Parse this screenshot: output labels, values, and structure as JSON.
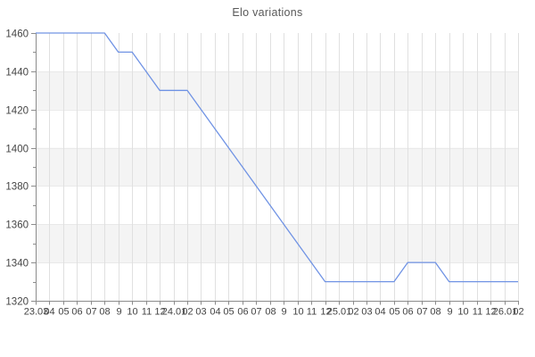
{
  "chart_data": {
    "type": "line",
    "title": "Elo variations",
    "categories": [
      "23.03",
      "04",
      "05",
      "06",
      "07",
      "08",
      "9",
      "10",
      "11",
      "12",
      "24.01",
      "02",
      "03",
      "04",
      "05",
      "06",
      "07",
      "08",
      "9",
      "10",
      "11",
      "12",
      "25.01",
      "02",
      "03",
      "04",
      "05",
      "06",
      "07",
      "08",
      "9",
      "10",
      "11",
      "12",
      "26.01",
      "02"
    ],
    "series": [
      {
        "name": "Elo",
        "values": [
          1460,
          1460,
          1460,
          1460,
          1460,
          1460,
          1450,
          1450,
          1440,
          1430,
          1430,
          1430,
          1420,
          1410,
          1400,
          1390,
          1380,
          1370,
          1360,
          1350,
          1340,
          1330,
          1330,
          1330,
          1330,
          1330,
          1330,
          1340,
          1340,
          1340,
          1330,
          1330,
          1330,
          1330,
          1330,
          1330
        ]
      }
    ],
    "ylim": [
      1320,
      1460
    ],
    "y_ticks": [
      1320,
      1340,
      1360,
      1380,
      1400,
      1420,
      1440,
      1460
    ],
    "y_minor_step": 10,
    "xlabel": "",
    "ylabel": "",
    "grid": true,
    "legend": "none",
    "alternate_row_bands": true,
    "colors": {
      "line": "#7093e4",
      "band": "#f4f4f4",
      "grid": "#e0e0e0",
      "band_edge": "#e9e9e9",
      "axis": "#8c8c8c",
      "tick_label": "#444444",
      "title": "#595959"
    }
  }
}
